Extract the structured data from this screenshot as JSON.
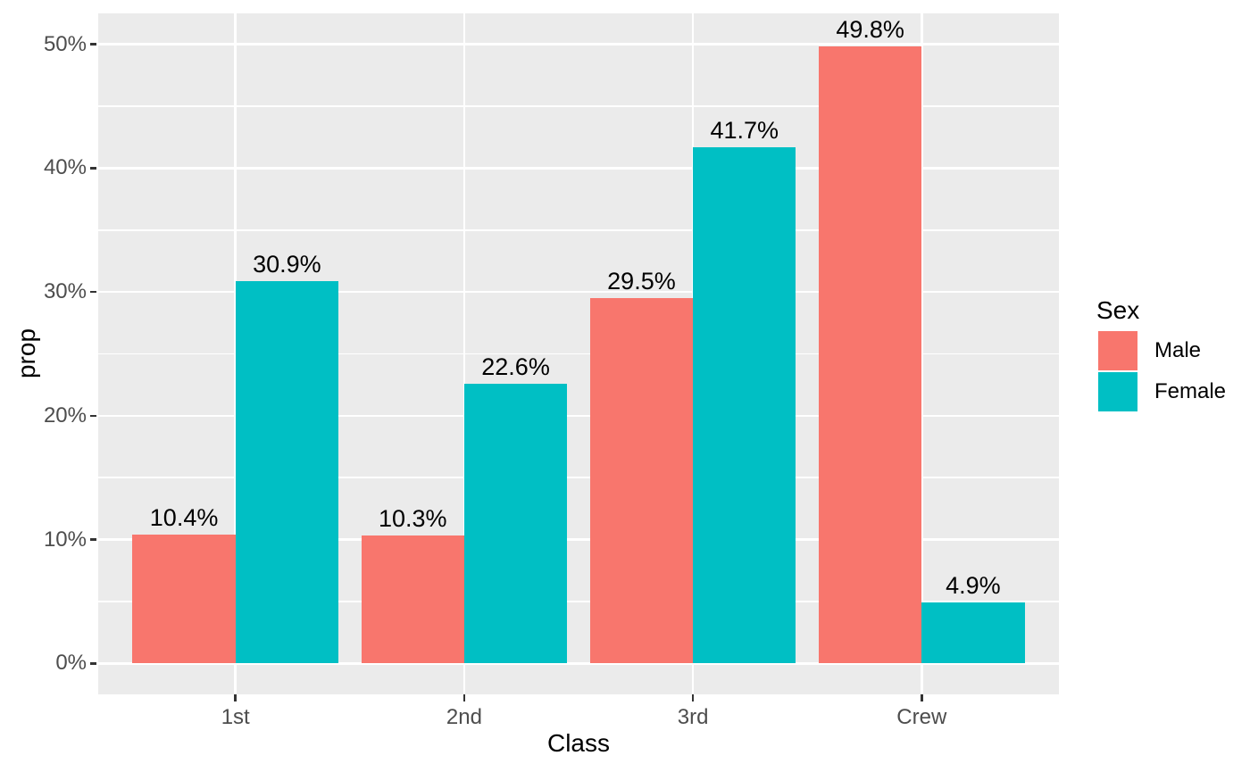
{
  "figure": {
    "background": "#FFFFFF"
  },
  "chart_data": {
    "type": "bar",
    "grouping": "dodge",
    "unit": "percent",
    "title": "",
    "xlabel": "Class",
    "ylabel": "prop",
    "categories": [
      "1st",
      "2nd",
      "3rd",
      "Crew"
    ],
    "series": [
      {
        "name": "Male",
        "color": "#F8766D",
        "values": [
          10.4,
          10.3,
          29.5,
          49.8
        ],
        "labels": [
          "10.4%",
          "10.3%",
          "29.5%",
          "49.8%"
        ]
      },
      {
        "name": "Female",
        "color": "#00BFC4",
        "values": [
          30.9,
          22.6,
          41.7,
          4.9
        ],
        "labels": [
          "30.9%",
          "22.6%",
          "41.7%",
          "4.9%"
        ]
      }
    ],
    "y_ticks": [
      {
        "value": 0,
        "label": "0%"
      },
      {
        "value": 10,
        "label": "10%"
      },
      {
        "value": 20,
        "label": "20%"
      },
      {
        "value": 30,
        "label": "30%"
      },
      {
        "value": 40,
        "label": "40%"
      },
      {
        "value": 50,
        "label": "50%"
      }
    ],
    "y_minor_ticks": [
      5,
      15,
      25,
      35,
      45
    ],
    "ylim": [
      -2.5,
      52.5
    ],
    "grid": {
      "enabled": true,
      "panel_background": "#EBEBEB",
      "major_color": "#FFFFFF",
      "minor_color": "#FFFFFF"
    },
    "legend": {
      "title": "Sex",
      "position": "right",
      "entries": [
        {
          "label": "Male",
          "color": "#F8766D"
        },
        {
          "label": "Female",
          "color": "#00BFC4"
        }
      ]
    },
    "colors": {
      "axis_text": "#4D4D4D",
      "axis_title": "#000000",
      "value_label": "#000000",
      "tick_mark": "#333333"
    }
  }
}
